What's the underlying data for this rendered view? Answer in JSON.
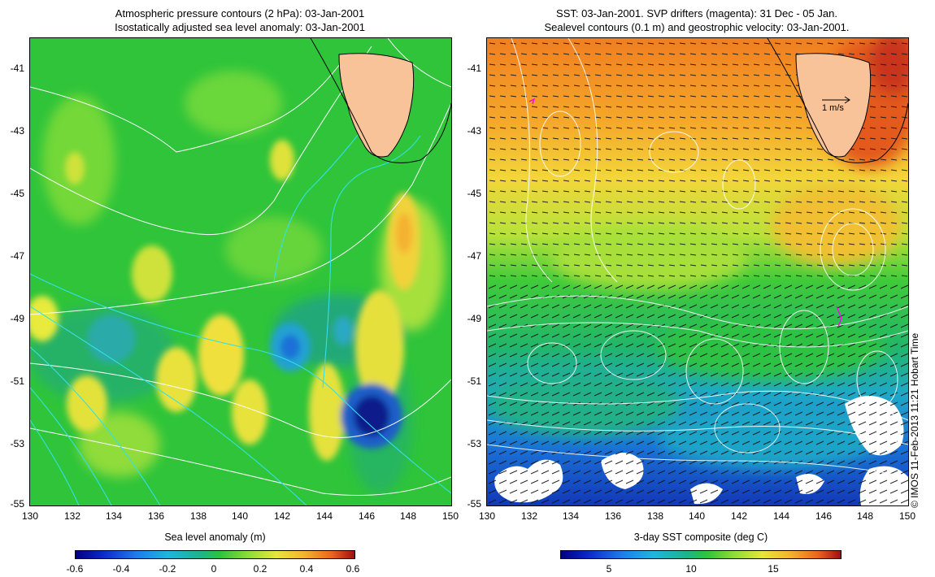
{
  "left_panel": {
    "title_line1": "Atmospheric pressure contours (2 hPa): 03-Jan-2001",
    "title_line2": "Isostatically adjusted sea level anomaly: 03-Jan-2001",
    "colorbar_label": "Sea level anomaly (m)",
    "colorbar_ticks": [
      "-0.6",
      "-0.4",
      "-0.2",
      "0",
      "0.2",
      "0.4",
      "0.6"
    ],
    "colorbar_range": [
      -0.6,
      0.6
    ]
  },
  "right_panel": {
    "title_line1": "SST: 03-Jan-2001. SVP drifters (magenta): 31 Dec - 05 Jan.",
    "title_line2": "Sealevel contours (0.1 m) and geostrophic velocity: 03-Jan-2001.",
    "colorbar_label": "3-day SST composite (deg C)",
    "colorbar_ticks": [
      "5",
      "10",
      "15"
    ],
    "colorbar_range": [
      2,
      19
    ],
    "velocity_scale_label": "1 m/s"
  },
  "axes": {
    "lon_ticks": [
      "130",
      "132",
      "134",
      "136",
      "138",
      "140",
      "142",
      "144",
      "146",
      "148",
      "150"
    ],
    "lat_ticks": [
      "-41",
      "-43",
      "-45",
      "-47",
      "-49",
      "-51",
      "-53",
      "-55"
    ],
    "lon_range": [
      130,
      150
    ],
    "lat_range": [
      -55,
      -40.1
    ]
  },
  "copyright": "© IMOS 11-Feb-2013 11:21 Hobart Time",
  "colors": {
    "land": "#f9c39a",
    "pressure_contour": "#ffffff",
    "bathymetry_contour": "#33e0e8",
    "drifter": "#ff00ff",
    "coastline": "#000000"
  }
}
